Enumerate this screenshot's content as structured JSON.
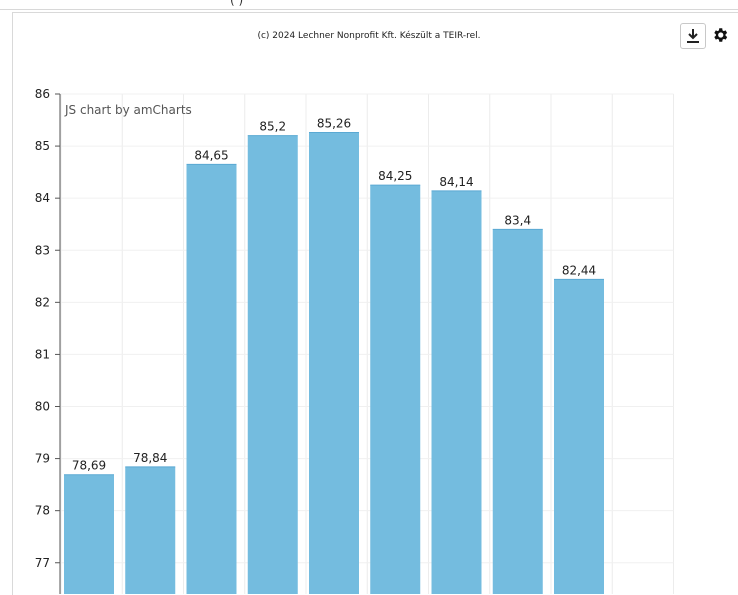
{
  "top_fragment": "( ) ",
  "header": {
    "credit": "(c) 2024 Lechner Nonprofit Kft. Készült a TEIR-rel."
  },
  "toolbar": {
    "download_icon": "download-icon",
    "settings_icon": "gear-icon"
  },
  "chart_data": {
    "type": "bar",
    "watermark": "JS chart by amCharts",
    "y_ticks": [
      "77",
      "78",
      "79",
      "80",
      "81",
      "82",
      "83",
      "84",
      "85",
      "86"
    ],
    "ylim": [
      76.4,
      86
    ],
    "values": [
      78.69,
      78.84,
      84.65,
      85.2,
      85.26,
      84.25,
      84.14,
      83.4,
      82.44
    ],
    "value_labels": [
      "78,69",
      "78,84",
      "84,65",
      "85,2",
      "85,26",
      "84,25",
      "84,14",
      "83,4",
      "82,44"
    ],
    "bar_color": "#74bcdf",
    "grid": true
  }
}
